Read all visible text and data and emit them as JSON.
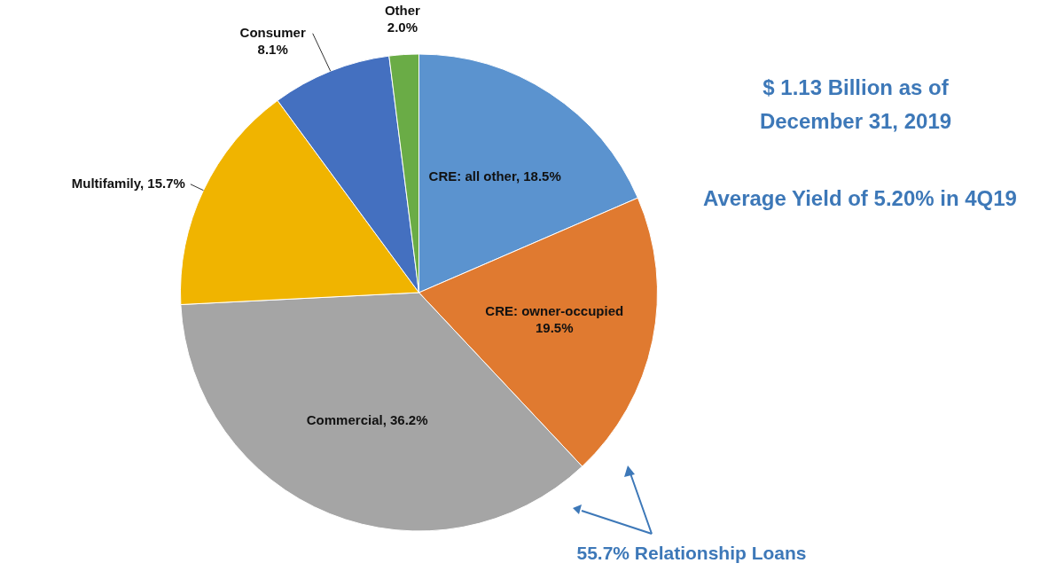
{
  "chart_data": {
    "type": "pie",
    "categories": [
      "CRE: all other",
      "CRE: owner-occupied",
      "Commercial",
      "Multifamily",
      "Consumer",
      "Other"
    ],
    "values": [
      18.5,
      19.5,
      36.2,
      15.7,
      8.1,
      2.0
    ],
    "value_labels": [
      "18.5%",
      "19.5%",
      "36.2%",
      "15.7%",
      "8.1%",
      "2.0%"
    ],
    "colors": [
      "#5b93cf",
      "#e07a30",
      "#a5a5a5",
      "#f0b400",
      "#4470c0",
      "#6aac46"
    ],
    "legend": false,
    "annotations": [
      "$ 1.13 Billion as of December 31, 2019",
      "Average Yield of 5.20% in 4Q19",
      "55.7% Relationship Loans"
    ]
  }
}
